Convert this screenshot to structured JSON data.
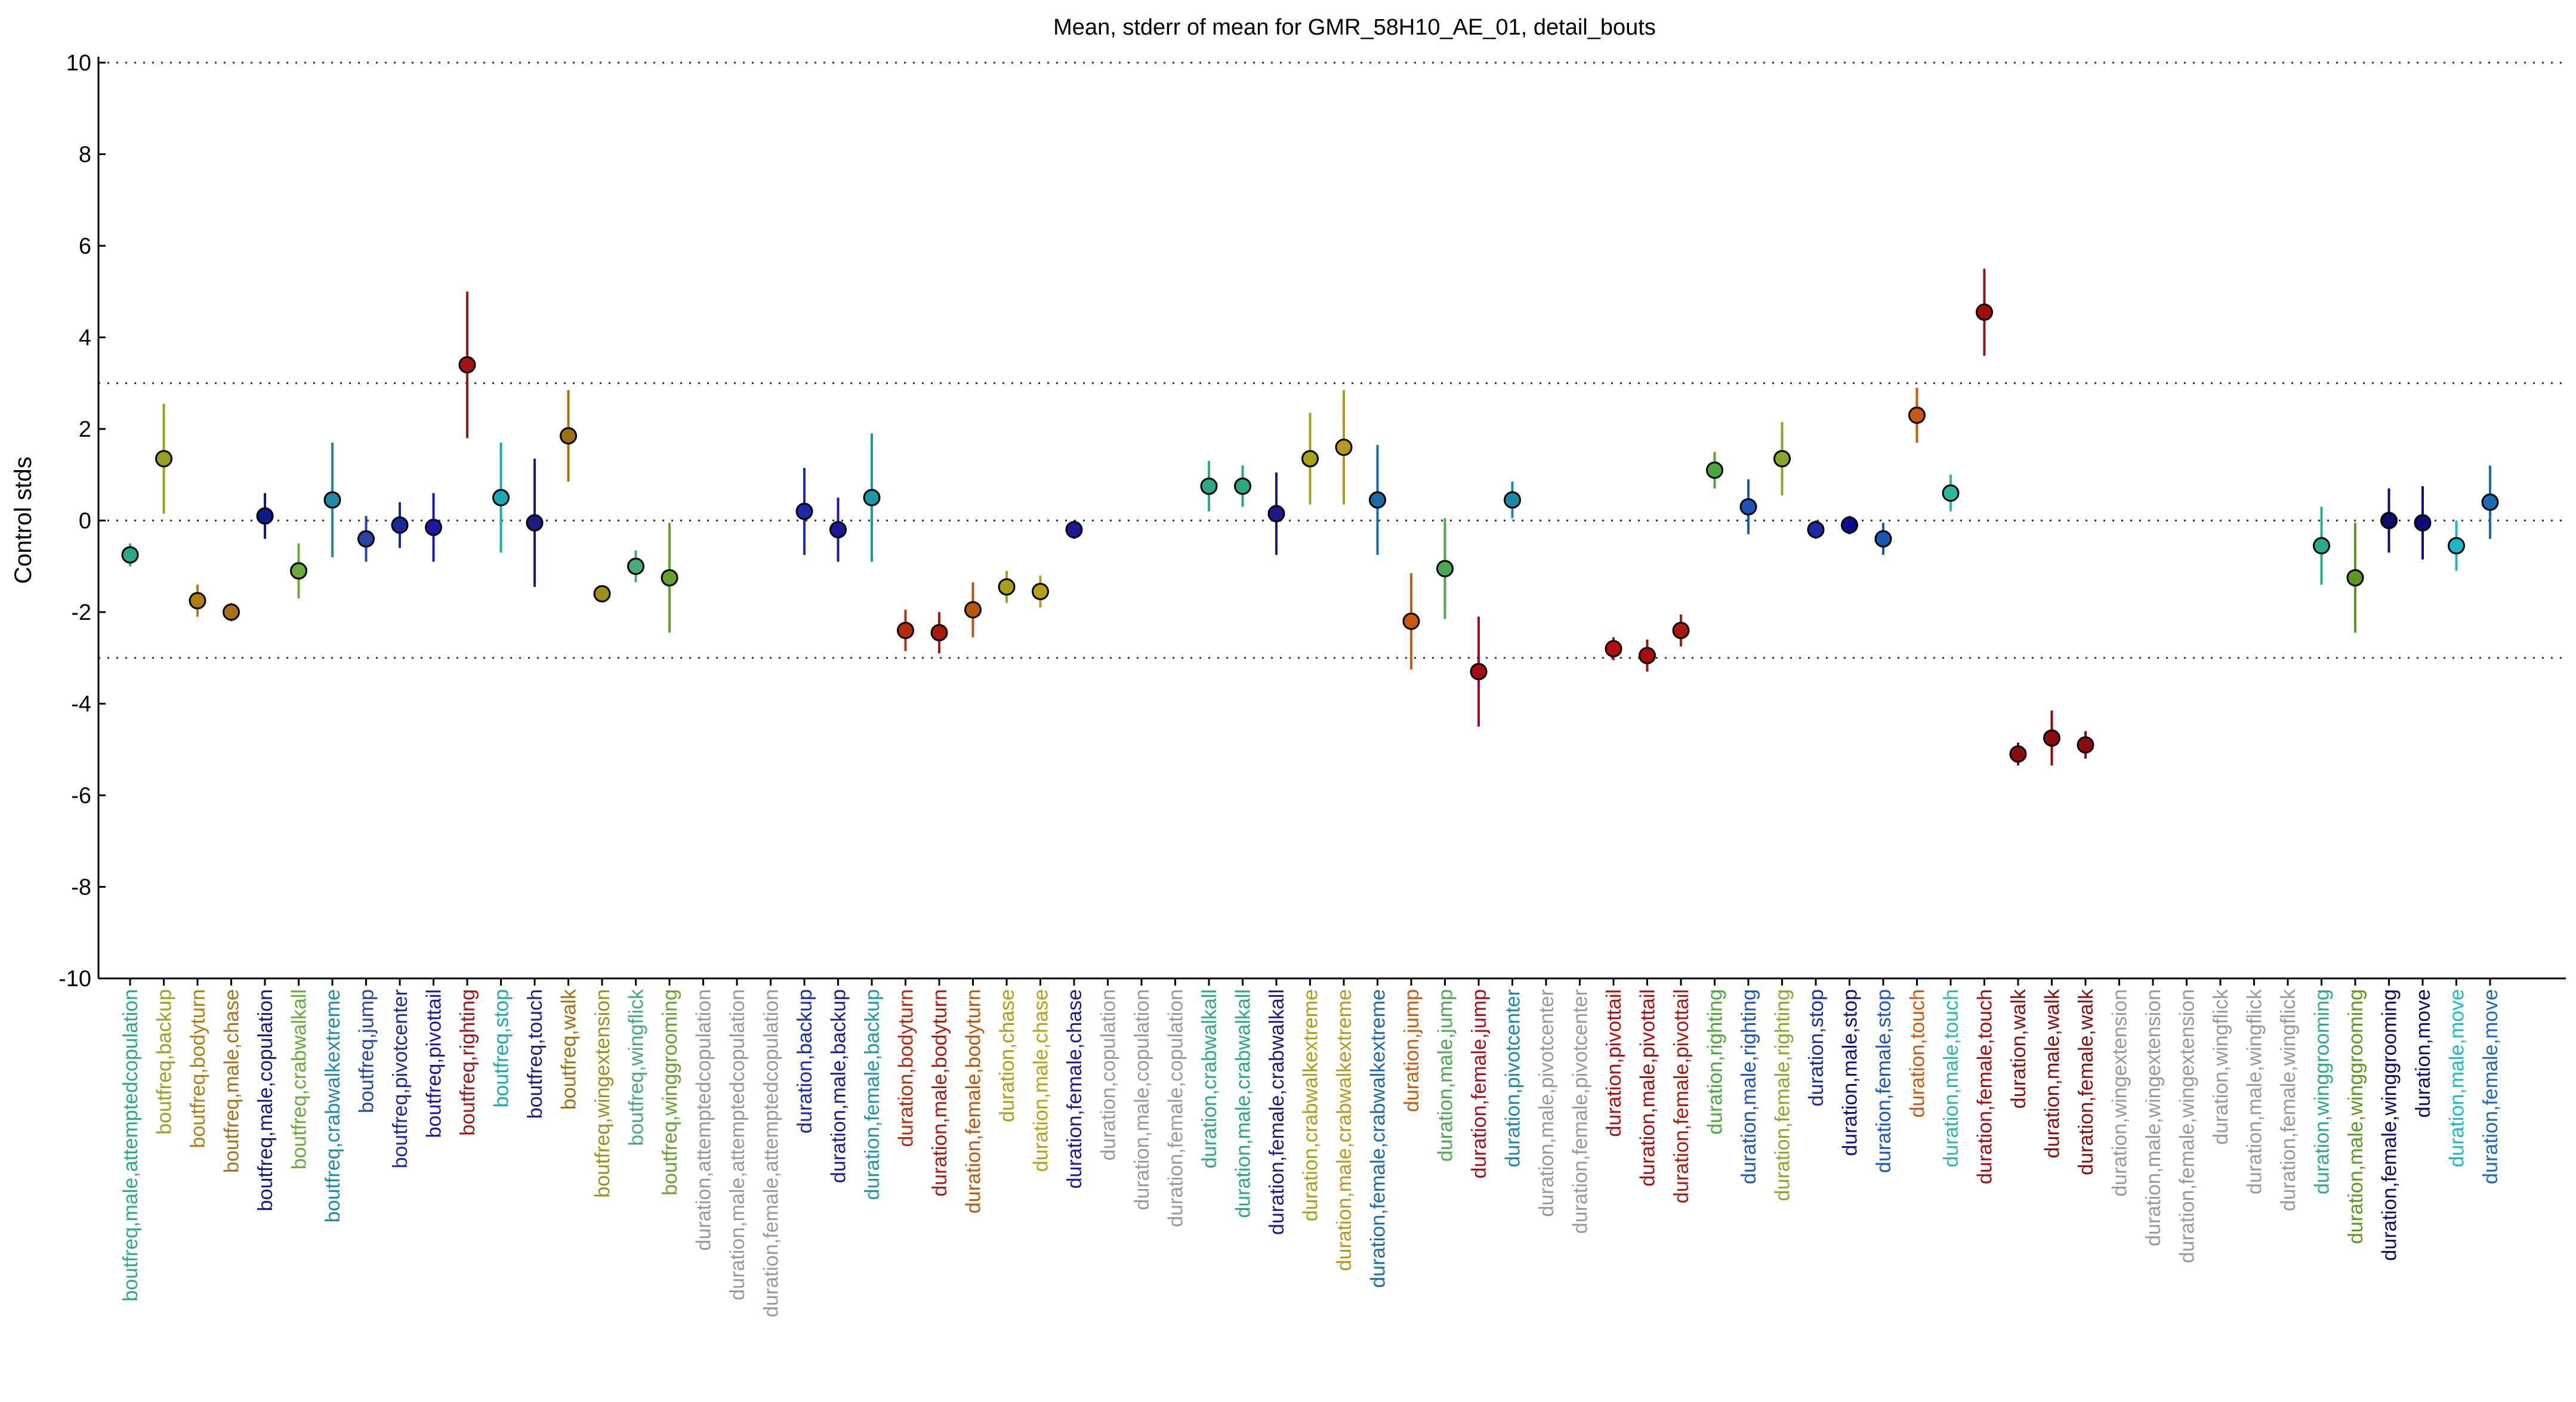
{
  "chart_data": {
    "type": "scatter",
    "title": "Mean, stderr of mean for GMR_58H10_AE_01, detail_bouts",
    "ylabel": "Control stds",
    "xlabel": "",
    "ylim": [
      -10,
      10
    ],
    "yticks": [
      -10,
      -8,
      -6,
      -4,
      -2,
      0,
      2,
      4,
      6,
      8,
      10
    ],
    "reference_lines": [
      10,
      3,
      0,
      -3,
      -10
    ],
    "grid": false,
    "legend": "none",
    "categories": [
      "boutfreq,male,attemptedcopulation",
      "boutfreq,backup",
      "boutfreq,bodyturn",
      "boutfreq,male,chase",
      "boutfreq,male,copulation",
      "boutfreq,crabwalkall",
      "boutfreq,crabwalkextreme",
      "boutfreq,jump",
      "boutfreq,pivotcenter",
      "boutfreq,pivottail",
      "boutfreq,righting",
      "boutfreq,stop",
      "boutfreq,touch",
      "boutfreq,walk",
      "boutfreq,wingextension",
      "boutfreq,wingflick",
      "boutfreq,winggrooming",
      "duration,attemptedcopulation",
      "duration,male,attemptedcopulation",
      "duration,female,attemptedcopulation",
      "duration,backup",
      "duration,male,backup",
      "duration,female,backup",
      "duration,bodyturn",
      "duration,male,bodyturn",
      "duration,female,bodyturn",
      "duration,chase",
      "duration,male,chase",
      "duration,female,chase",
      "duration,copulation",
      "duration,male,copulation",
      "duration,female,copulation",
      "duration,crabwalkall",
      "duration,male,crabwalkall",
      "duration,female,crabwalkall",
      "duration,crabwalkextreme",
      "duration,male,crabwalkextreme",
      "duration,female,crabwalkextreme",
      "duration,jump",
      "duration,male,jump",
      "duration,female,jump",
      "duration,pivotcenter",
      "duration,male,pivotcenter",
      "duration,female,pivotcenter",
      "duration,pivottail",
      "duration,male,pivottail",
      "duration,female,pivottail",
      "duration,righting",
      "duration,male,righting",
      "duration,female,righting",
      "duration,stop",
      "duration,male,stop",
      "duration,female,stop",
      "duration,touch",
      "duration,male,touch",
      "duration,female,touch",
      "duration,walk",
      "duration,male,walk",
      "duration,female,walk",
      "duration,wingextension",
      "duration,male,wingextension",
      "duration,female,wingextension",
      "duration,wingflick",
      "duration,male,wingflick",
      "duration,female,wingflick",
      "duration,winggrooming",
      "duration,male,winggrooming",
      "duration,female,winggrooming",
      "duration,move",
      "duration,male,move",
      "duration,female,move"
    ],
    "label_colors": [
      "#2aa889",
      "#9aa01c",
      "#b27d10",
      "#a9701a",
      "#0c1a8c",
      "#6aa83a",
      "#1f8aa8",
      "#2246a8",
      "#1a2a9c",
      "#1a1aa0",
      "#a01414",
      "#18a8b8",
      "#1a1a88",
      "#a07010",
      "#a08e1a",
      "#4aa878",
      "#6aa030",
      "#999999",
      "#999999",
      "#999999",
      "#1a2aa8",
      "#1a1a98",
      "#1a98a8",
      "#b82a0c",
      "#a81a0c",
      "#b8580c",
      "#a8a014",
      "#b8a014",
      "#1a1a98",
      "#999999",
      "#999999",
      "#999999",
      "#2aa888",
      "#2aa880",
      "#1a1a88",
      "#a8a014",
      "#b8981c",
      "#1a6aa8",
      "#c85a0c",
      "#4aa850",
      "#a80c14",
      "#1a88a8",
      "#999999",
      "#999999",
      "#b80c0c",
      "#a80c0c",
      "#a81a0c",
      "#4aa838",
      "#1a56b8",
      "#8aa828",
      "#1a2aa8",
      "#0c0c88",
      "#1a56b8",
      "#c8580c",
      "#2ab8a0",
      "#a00c0c",
      "#8a0c0c",
      "#8a0c0c",
      "#8a0c0c",
      "#999999",
      "#999999",
      "#999999",
      "#999999",
      "#999999",
      "#999999",
      "#2aa890",
      "#5a9a1a",
      "#0c0c6a",
      "#0c0c78",
      "#1ab8c8",
      "#1a6ab8"
    ],
    "series": [
      {
        "values": [
          -0.75,
          1.35,
          -1.75,
          -2.0,
          0.1,
          -1.1,
          0.45,
          -0.4,
          -0.1,
          -0.15,
          3.4,
          0.5,
          -0.05,
          1.85,
          -1.6,
          -1.0,
          -1.25,
          null,
          null,
          null,
          0.2,
          -0.2,
          0.5,
          -2.4,
          -2.45,
          -1.95,
          -1.45,
          -1.55,
          -0.2,
          null,
          null,
          null,
          0.75,
          0.75,
          0.15,
          1.35,
          1.6,
          0.45,
          -2.2,
          -1.05,
          -3.3,
          0.45,
          null,
          null,
          -2.8,
          -2.95,
          -2.4,
          1.1,
          0.3,
          1.35,
          -0.2,
          -0.1,
          -0.4,
          2.3,
          0.6,
          4.55,
          -5.1,
          -4.75,
          -4.9,
          null,
          null,
          null,
          null,
          null,
          null,
          -0.55,
          -1.25,
          0.0,
          -0.05,
          -0.55,
          0.4
        ],
        "errors": [
          0.25,
          1.2,
          0.35,
          0.2,
          0.5,
          0.6,
          1.25,
          0.5,
          0.5,
          0.75,
          1.6,
          1.2,
          1.4,
          1.0,
          0.15,
          0.35,
          1.2,
          null,
          null,
          null,
          0.95,
          0.7,
          1.4,
          0.45,
          0.45,
          0.6,
          0.35,
          0.35,
          0.2,
          null,
          null,
          null,
          0.55,
          0.45,
          0.9,
          1.0,
          1.25,
          1.2,
          1.05,
          1.1,
          1.2,
          0.4,
          null,
          null,
          0.25,
          0.35,
          0.35,
          0.4,
          0.6,
          0.8,
          0.2,
          0.2,
          0.35,
          0.6,
          0.4,
          0.95,
          0.25,
          0.6,
          0.3,
          null,
          null,
          null,
          null,
          null,
          null,
          0.85,
          1.2,
          0.7,
          0.8,
          0.55,
          0.8
        ]
      }
    ]
  }
}
